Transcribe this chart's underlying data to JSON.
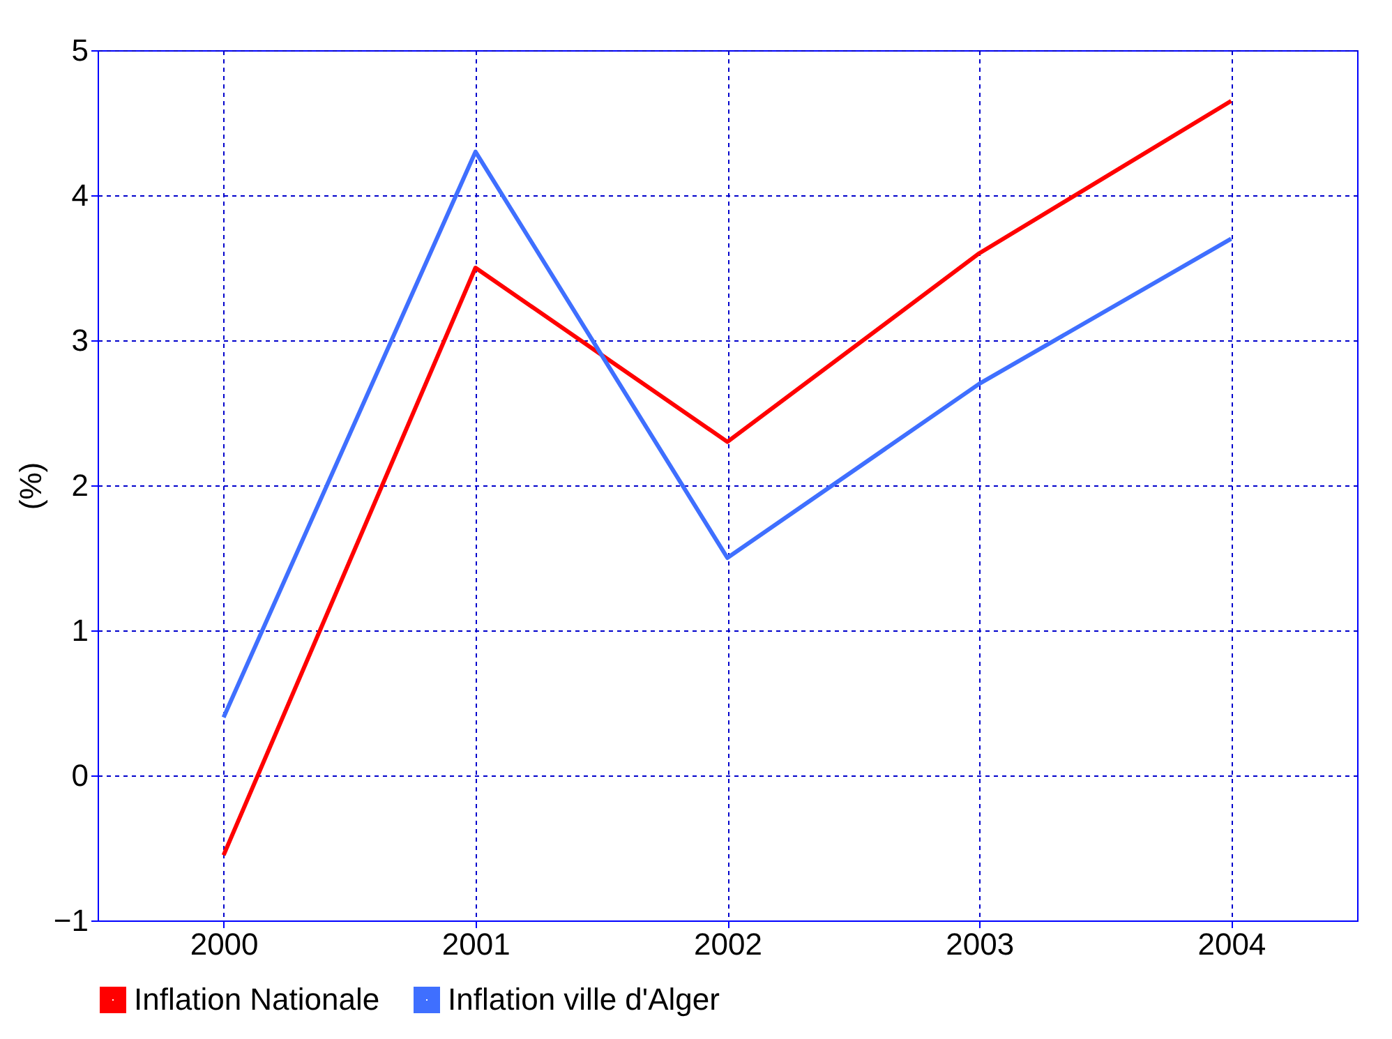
{
  "chart_data": {
    "type": "line",
    "ylabel": "(%)",
    "categories": [
      "2000",
      "2001",
      "2002",
      "2003",
      "2004"
    ],
    "series": [
      {
        "name": "Inflation Nationale",
        "color": "#ff0000",
        "values": [
          -0.55,
          3.5,
          2.3,
          3.6,
          4.65
        ]
      },
      {
        "name": "Inflation ville d'Alger",
        "color": "#3f6fff",
        "values": [
          0.4,
          4.3,
          1.5,
          2.7,
          3.7
        ]
      }
    ],
    "ylim": [
      -1,
      5
    ],
    "yticks": [
      -1,
      0,
      1,
      2,
      3,
      4,
      5
    ],
    "grid": true,
    "legend": "bottom",
    "marker": "none",
    "line_style": "solid"
  }
}
